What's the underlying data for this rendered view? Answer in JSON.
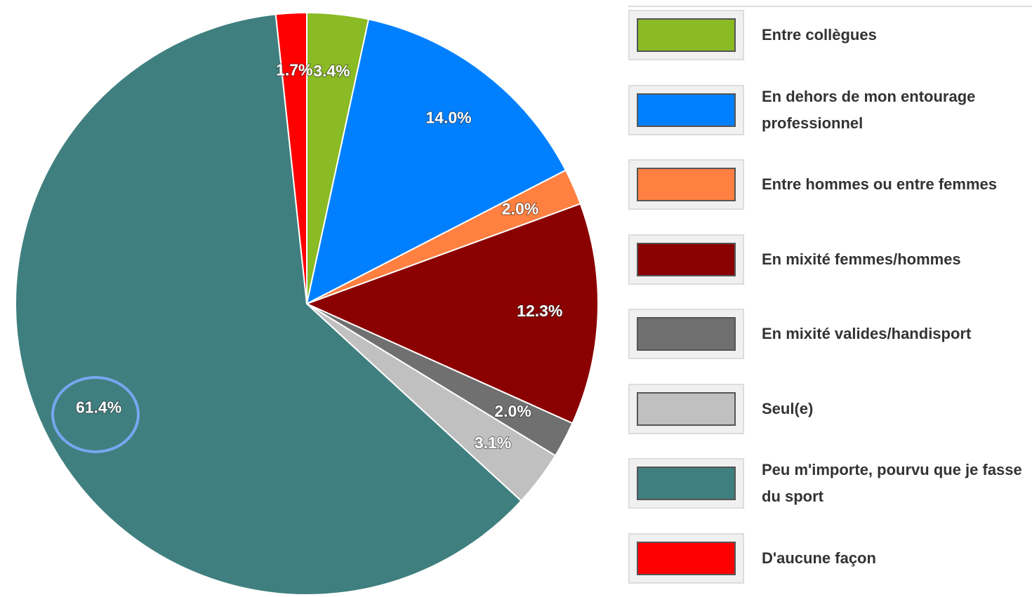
{
  "chart_data": {
    "type": "pie",
    "categories": [
      "Entre collègues",
      "En dehors de mon entourage professionnel",
      "Entre hommes ou entre femmes",
      "En mixité femmes/hommes",
      "En mixité valides/handisport",
      "Seul(e)",
      "Peu m'importe, pourvu que je fasse du sport",
      "D'aucune façon"
    ],
    "values": [
      3.4,
      14.0,
      2.0,
      12.3,
      2.0,
      3.1,
      61.4,
      1.7
    ],
    "value_labels": [
      "3.4%",
      "14.0%",
      "2.0%",
      "12.3%",
      "2.0%",
      "3.1%",
      "61.4%",
      "1.7%"
    ],
    "colors": [
      "#8aba24",
      "#0080ff",
      "#ff8040",
      "#8b0000",
      "#707070",
      "#c0c0c0",
      "#407f7f",
      "#ff0000"
    ],
    "legend": "right"
  }
}
